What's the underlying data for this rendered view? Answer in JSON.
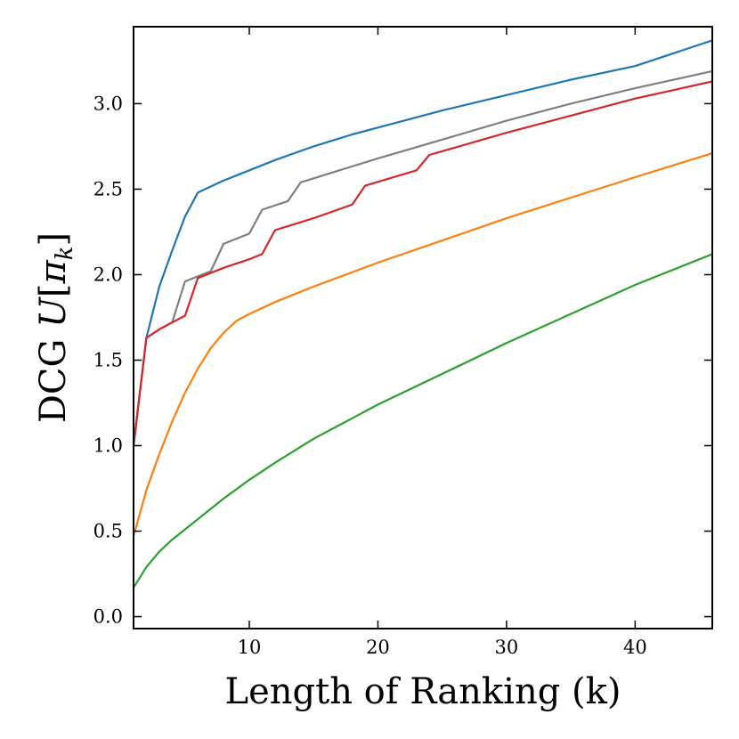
{
  "chart_data": {
    "type": "line",
    "title": "",
    "xlabel": "Length of Ranking (k)",
    "ylabel_prefix": "DCG ",
    "ylabel_math_U": "U",
    "ylabel_math_pi": "π",
    "ylabel_math_k": "k",
    "xlim": [
      1,
      46
    ],
    "ylim": [
      -0.07,
      3.45
    ],
    "xticks": [
      10,
      20,
      30,
      40
    ],
    "xtick_labels": [
      "10",
      "20",
      "30",
      "40"
    ],
    "yticks": [
      0.0,
      0.5,
      1.0,
      1.5,
      2.0,
      2.5,
      3.0
    ],
    "ytick_labels": [
      "0.0",
      "0.5",
      "1.0",
      "1.5",
      "2.0",
      "2.5",
      "3.0"
    ],
    "grid": false,
    "legend": "none",
    "series": [
      {
        "name": "blue",
        "color": "#1f77b4",
        "x": [
          1,
          2,
          3,
          4,
          5,
          6,
          8,
          10,
          12,
          15,
          18,
          20,
          25,
          30,
          35,
          40,
          46
        ],
        "y": [
          1.0,
          1.63,
          1.93,
          2.14,
          2.34,
          2.48,
          2.55,
          2.61,
          2.67,
          2.75,
          2.82,
          2.86,
          2.96,
          3.05,
          3.14,
          3.22,
          3.37
        ]
      },
      {
        "name": "gray",
        "color": "#7f7f7f",
        "x": [
          1,
          2,
          3,
          4,
          5,
          6,
          7,
          8,
          10,
          11,
          13,
          14,
          20,
          25,
          30,
          35,
          40,
          46
        ],
        "y": [
          1.0,
          1.63,
          1.68,
          1.72,
          1.96,
          1.99,
          2.02,
          2.18,
          2.24,
          2.38,
          2.43,
          2.54,
          2.68,
          2.79,
          2.9,
          3.0,
          3.09,
          3.19
        ]
      },
      {
        "name": "red",
        "color": "#d62728",
        "x": [
          1,
          2,
          3,
          4,
          5,
          6,
          8,
          10,
          11,
          12,
          15,
          18,
          19,
          23,
          24,
          30,
          35,
          40,
          46
        ],
        "y": [
          1.0,
          1.63,
          1.68,
          1.72,
          1.76,
          1.98,
          2.04,
          2.09,
          2.12,
          2.26,
          2.33,
          2.41,
          2.52,
          2.61,
          2.7,
          2.83,
          2.93,
          3.03,
          3.13
        ]
      },
      {
        "name": "orange",
        "color": "#ff7f0e",
        "x": [
          1,
          2,
          3,
          4,
          5,
          6,
          7,
          8,
          9,
          10,
          12,
          15,
          20,
          25,
          30,
          35,
          40,
          46
        ],
        "y": [
          0.47,
          0.74,
          0.95,
          1.14,
          1.31,
          1.45,
          1.57,
          1.66,
          1.73,
          1.77,
          1.84,
          1.93,
          2.07,
          2.2,
          2.33,
          2.45,
          2.57,
          2.71
        ]
      },
      {
        "name": "green",
        "color": "#2ca02c",
        "x": [
          1,
          2,
          3,
          4,
          5,
          6,
          8,
          10,
          12,
          15,
          18,
          20,
          25,
          30,
          35,
          40,
          46
        ],
        "y": [
          0.17,
          0.29,
          0.38,
          0.45,
          0.51,
          0.57,
          0.69,
          0.8,
          0.9,
          1.04,
          1.16,
          1.24,
          1.42,
          1.6,
          1.77,
          1.94,
          2.12
        ]
      }
    ]
  }
}
